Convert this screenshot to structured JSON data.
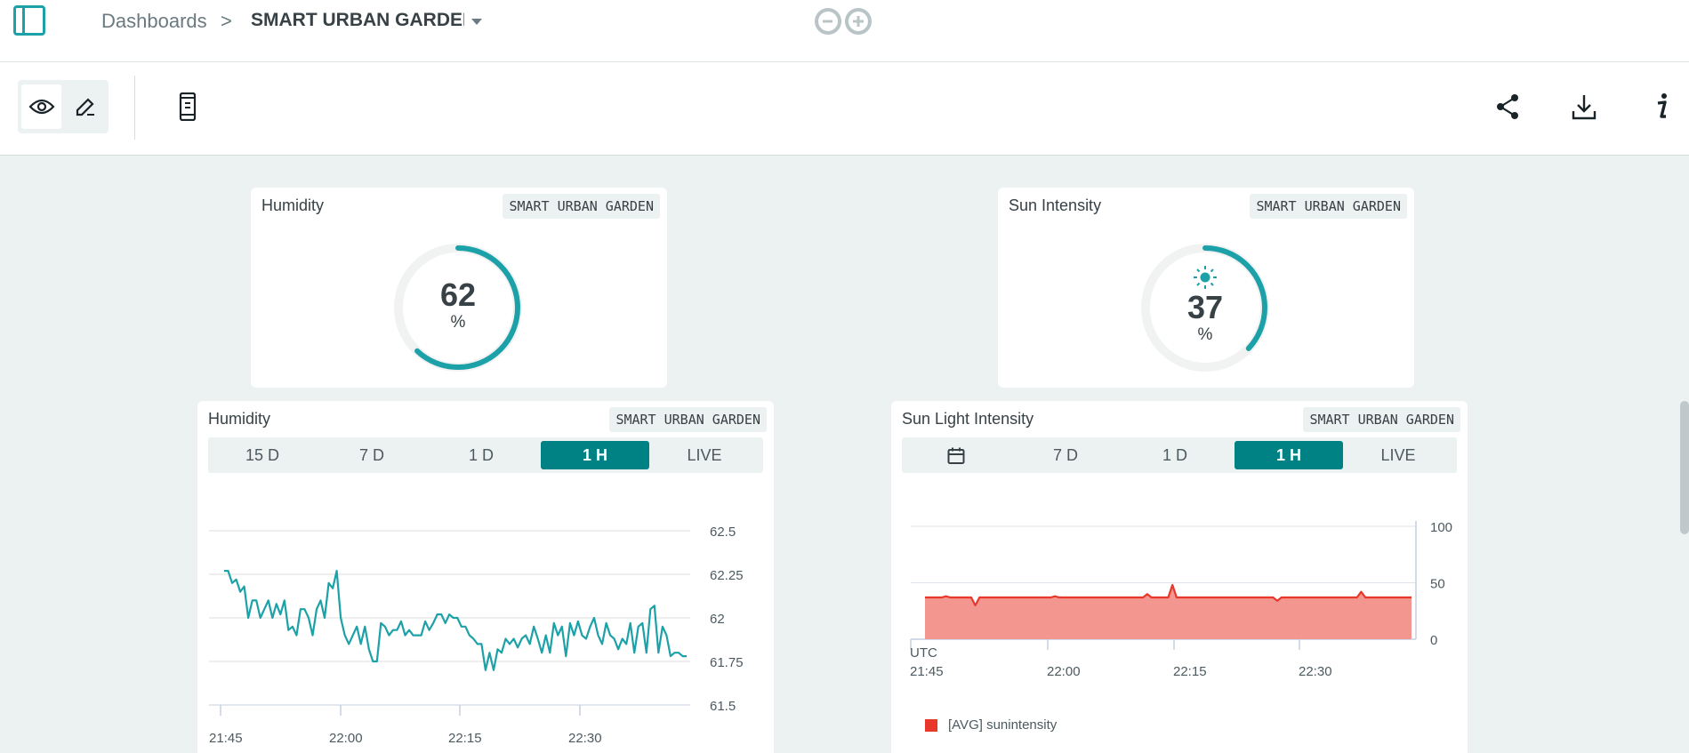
{
  "header": {
    "breadcrumb_root": "Dashboards",
    "breadcrumb_sep": ">",
    "dashboard_name": "SMART URBAN GARDEN",
    "icons": [
      "sidebar-toggle-icon",
      "chevron-down-icon",
      "arduino-logo"
    ]
  },
  "toolbar": {
    "icons": [
      "eye-icon",
      "pencil-icon",
      "mobile-icon",
      "share-icon",
      "download-icon",
      "info-icon"
    ]
  },
  "colors": {
    "accent": "#1da1a8",
    "active_button": "#008184",
    "sun_line": "#e8372b",
    "sun_fill": "#f3968f"
  },
  "widgets": {
    "humidity_gauge": {
      "title": "Humidity",
      "tag": "SMART URBAN GARDEN",
      "value": "62",
      "unit": "%",
      "fraction": 0.62
    },
    "sun_gauge": {
      "title": "Sun Intensity",
      "tag": "SMART URBAN GARDEN",
      "value": "37",
      "unit": "%",
      "fraction": 0.37,
      "icon": "sun-icon"
    },
    "humidity_chart": {
      "title": "Humidity",
      "tag": "SMART URBAN GARDEN",
      "ranges": [
        "15 D",
        "7 D",
        "1 D",
        "1 H",
        "LIVE"
      ],
      "active_range": "1 H"
    },
    "sun_chart": {
      "title": "Sun Light Intensity",
      "tag": "SMART URBAN GARDEN",
      "ranges": [
        "",
        "7 D",
        "1 D",
        "1 H",
        "LIVE"
      ],
      "active_range": "1 H",
      "timezone": "UTC",
      "legend": "[AVG] sunintensity"
    }
  },
  "chart_data": [
    {
      "type": "line",
      "series_color": "#1da1a8",
      "x_ticks": [
        "21:45",
        "22:00",
        "22:15",
        "22:30"
      ],
      "y_ticks": [
        "62.5",
        "62.25",
        "62",
        "61.75",
        "61.5"
      ],
      "ylim": [
        61.5,
        62.5
      ],
      "grid": true,
      "values": [
        62.27,
        62.27,
        62.2,
        62.22,
        62.15,
        62.18,
        62.0,
        62.1,
        62.1,
        62.0,
        62.05,
        62.1,
        62.0,
        62.08,
        62.02,
        62.1,
        61.93,
        61.95,
        61.9,
        62.05,
        62.05,
        62.0,
        61.9,
        62.05,
        62.1,
        62.0,
        62.2,
        62.17,
        62.27,
        62.0,
        61.9,
        61.85,
        61.9,
        61.95,
        61.85,
        61.95,
        61.82,
        61.75,
        61.75,
        61.97,
        61.95,
        61.9,
        61.93,
        61.93,
        61.98,
        61.9,
        61.93,
        61.9,
        61.9,
        61.9,
        61.98,
        61.93,
        61.97,
        62.02,
        62.02,
        61.97,
        62.02,
        62.0,
        62.0,
        61.95,
        61.95,
        61.9,
        61.88,
        61.85,
        61.85,
        61.7,
        61.8,
        61.7,
        61.82,
        61.8,
        61.88,
        61.85,
        61.88,
        61.83,
        61.88,
        61.9,
        61.85,
        61.95,
        61.88,
        61.8,
        61.9,
        61.8,
        61.97,
        61.9,
        61.95,
        61.78,
        61.97,
        61.9,
        61.98,
        61.9,
        61.88,
        61.95,
        62.0,
        61.9,
        61.85,
        61.97,
        61.9,
        61.88,
        61.82,
        61.88,
        61.85,
        61.97,
        61.8,
        61.95,
        61.97,
        61.8,
        62.05,
        62.07,
        61.8,
        61.95,
        61.9,
        61.78,
        61.8,
        61.8,
        61.78,
        61.78
      ]
    },
    {
      "type": "area",
      "series_color": "#e8372b",
      "x_ticks": [
        "21:45",
        "22:00",
        "22:15",
        "22:30"
      ],
      "y_ticks": [
        "100",
        "50",
        "0"
      ],
      "ylim": [
        0,
        100
      ],
      "grid": true,
      "values": [
        37,
        37,
        37,
        37,
        37,
        38,
        37,
        37,
        37,
        37,
        37,
        37,
        30,
        37,
        37,
        37,
        37,
        37,
        37,
        37,
        37,
        37,
        37,
        37,
        37,
        37,
        37,
        37,
        37,
        37,
        37,
        38,
        37,
        37,
        37,
        37,
        37,
        37,
        37,
        37,
        37,
        37,
        37,
        37,
        37,
        37,
        37,
        37,
        37,
        37,
        37,
        37,
        37,
        40,
        37,
        37,
        37,
        37,
        37,
        48,
        37,
        37,
        37,
        37,
        37,
        37,
        37,
        37,
        37,
        37,
        37,
        37,
        37,
        37,
        37,
        37,
        37,
        37,
        37,
        37,
        37,
        37,
        37,
        37,
        34,
        37,
        37,
        37,
        37,
        37,
        37,
        37,
        37,
        37,
        37,
        37,
        37,
        37,
        37,
        37,
        37,
        37,
        37,
        37,
        42,
        37,
        37,
        37,
        37,
        37,
        37,
        37,
        37,
        37,
        37,
        37,
        37
      ]
    }
  ]
}
